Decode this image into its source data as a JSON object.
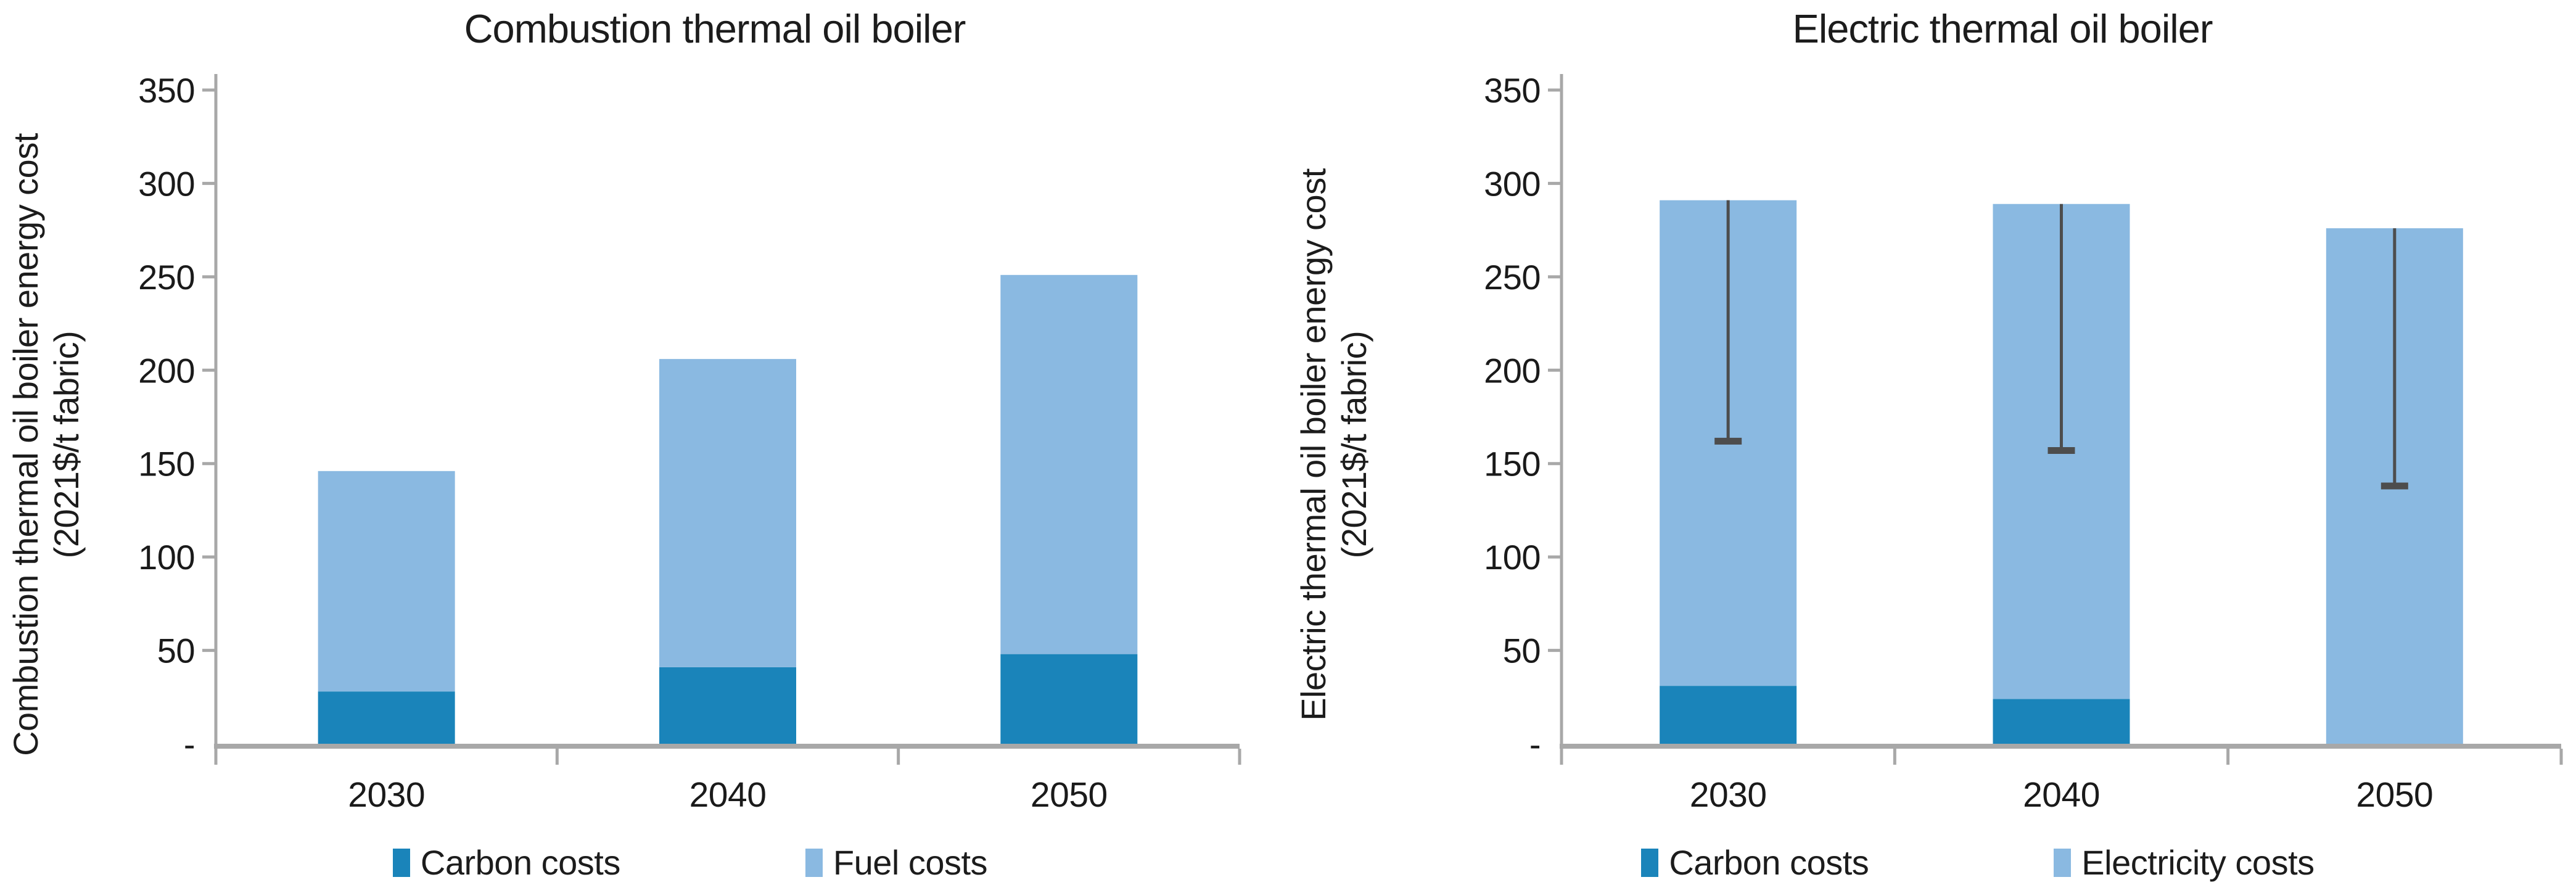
{
  "colors": {
    "carbon_costs": "#1A84BA",
    "fuel_costs": "#8AB9E1",
    "electricity_costs": "#8AB9E1",
    "axis": "#A8A8A8",
    "error_bar": "#4D4D4D",
    "text": "#1A1A1A"
  },
  "chart_data": [
    {
      "type": "bar",
      "stacked": true,
      "title": "Combustion thermal oil boiler",
      "ylabel": "Combustion thermal oil boiler energy cost",
      "ylabel_units": "(2021$/t fabric)",
      "xlabel": "",
      "categories": [
        "2030",
        "2040",
        "2050"
      ],
      "series": [
        {
          "name": "Carbon costs",
          "color": "carbon_costs",
          "values": [
            28,
            41,
            48
          ]
        },
        {
          "name": "Fuel costs",
          "color": "fuel_costs",
          "values": [
            118,
            165,
            203
          ]
        }
      ],
      "bar_totals": [
        146,
        206,
        251
      ],
      "ylim": [
        0,
        350
      ],
      "ytick_interval": 50,
      "ytick_labels": [
        "-",
        "50",
        "100",
        "150",
        "200",
        "250",
        "300",
        "350"
      ],
      "gridlines": false,
      "legend_position": "bottom",
      "error_bars": null
    },
    {
      "type": "bar",
      "stacked": true,
      "title": "Electric thermal oil boiler",
      "ylabel": "Electric thermal oil boiler energy cost",
      "ylabel_units": "(2021$/t fabric)",
      "xlabel": "",
      "categories": [
        "2030",
        "2040",
        "2050"
      ],
      "series": [
        {
          "name": "Carbon costs",
          "color": "carbon_costs",
          "values": [
            31,
            24,
            0
          ]
        },
        {
          "name": "Electricity costs",
          "color": "electricity_costs",
          "values": [
            260,
            265,
            276
          ]
        }
      ],
      "bar_totals": [
        291,
        289,
        276
      ],
      "ylim": [
        0,
        350
      ],
      "ytick_interval": 50,
      "ytick_labels": [
        "-",
        "50",
        "100",
        "150",
        "200",
        "250",
        "300",
        "350"
      ],
      "gridlines": false,
      "legend_position": "bottom",
      "error_bars": {
        "direction": "minus",
        "lower": [
          162,
          157,
          138
        ]
      }
    }
  ]
}
